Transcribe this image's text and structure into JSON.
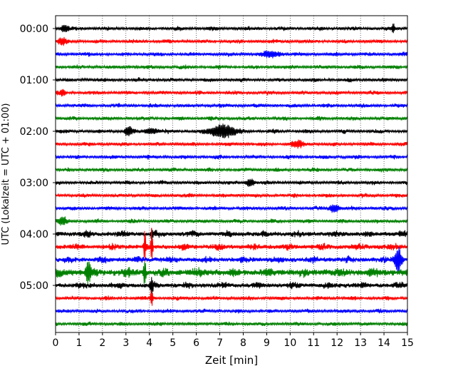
{
  "chart_data": {
    "type": "line",
    "xlabel": "Zeit  [min]",
    "ylabel": "UTC (Lokalzeit = UTC + 01:00)",
    "xlim": [
      0,
      15
    ],
    "x_ticks": [
      "0",
      "1",
      "2",
      "3",
      "4",
      "5",
      "6",
      "7",
      "8",
      "9",
      "10",
      "11",
      "12",
      "13",
      "14",
      "15"
    ],
    "y_tick_labels": [
      "00:00",
      "01:00",
      "02:00",
      "03:00",
      "04:00",
      "05:00"
    ],
    "grid": "vertical-dotted",
    "trace_minutes": 15,
    "trace_colors": [
      "#000000",
      "#ff0000",
      "#0000ff",
      "#008000"
    ],
    "traces": [
      {
        "start": "00:00",
        "color": "#000000"
      },
      {
        "start": "00:15",
        "color": "#ff0000"
      },
      {
        "start": "00:30",
        "color": "#0000ff"
      },
      {
        "start": "00:45",
        "color": "#008000"
      },
      {
        "start": "01:00",
        "color": "#000000"
      },
      {
        "start": "01:15",
        "color": "#ff0000"
      },
      {
        "start": "01:30",
        "color": "#0000ff"
      },
      {
        "start": "01:45",
        "color": "#008000"
      },
      {
        "start": "02:00",
        "color": "#000000"
      },
      {
        "start": "02:15",
        "color": "#ff0000"
      },
      {
        "start": "02:30",
        "color": "#0000ff"
      },
      {
        "start": "02:45",
        "color": "#008000"
      },
      {
        "start": "03:00",
        "color": "#000000"
      },
      {
        "start": "03:15",
        "color": "#ff0000"
      },
      {
        "start": "03:30",
        "color": "#0000ff"
      },
      {
        "start": "03:45",
        "color": "#008000"
      },
      {
        "start": "04:00",
        "color": "#000000"
      },
      {
        "start": "04:15",
        "color": "#ff0000"
      },
      {
        "start": "04:30",
        "color": "#0000ff"
      },
      {
        "start": "04:45",
        "color": "#008000"
      },
      {
        "start": "05:00",
        "color": "#000000"
      },
      {
        "start": "05:15",
        "color": "#ff0000"
      },
      {
        "start": "05:30",
        "color": "#0000ff"
      },
      {
        "start": "05:45",
        "color": "#008000"
      }
    ]
  }
}
